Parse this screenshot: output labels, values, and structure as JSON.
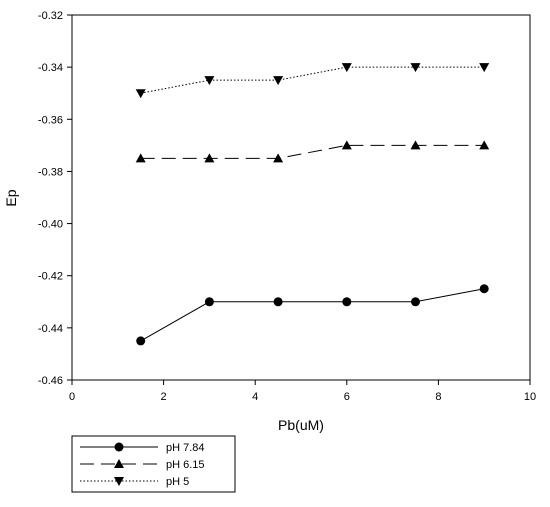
{
  "chart_data": {
    "type": "line",
    "title": "",
    "xlabel": "Pb(uM)",
    "ylabel": "Ep",
    "xlim": [
      0,
      10
    ],
    "ylim": [
      -0.46,
      -0.32
    ],
    "xticks": [
      0,
      2,
      4,
      6,
      8,
      10
    ],
    "xtick_labels": [
      "0",
      "2",
      "4",
      "6",
      "8",
      "10"
    ],
    "yticks": [
      -0.32,
      -0.34,
      -0.36,
      -0.38,
      -0.4,
      -0.42,
      -0.44,
      -0.46
    ],
    "ytick_labels": [
      "-0.32",
      "-0.34",
      "-0.36",
      "-0.38",
      "-0.40",
      "-0.42",
      "-0.44",
      "-0.46"
    ],
    "grid": false,
    "legend_position": "bottom-left, below plot",
    "x": [
      1.5,
      3,
      4.5,
      6,
      7.5,
      9
    ],
    "series": [
      {
        "name": "pH 7.84",
        "marker": "circle",
        "line_style": "solid",
        "values": [
          -0.445,
          -0.43,
          -0.43,
          -0.43,
          -0.43,
          -0.425
        ]
      },
      {
        "name": "pH 6.15",
        "marker": "triangle-up",
        "line_style": "dashed",
        "values": [
          -0.375,
          -0.375,
          -0.375,
          -0.37,
          -0.37,
          -0.37
        ]
      },
      {
        "name": "pH 5",
        "marker": "triangle-down",
        "line_style": "dotted",
        "values": [
          -0.35,
          -0.345,
          -0.345,
          -0.34,
          -0.34,
          -0.34
        ]
      }
    ]
  }
}
